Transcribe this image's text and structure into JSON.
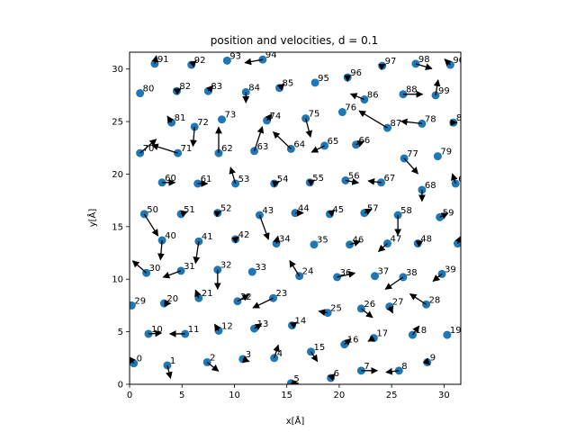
{
  "chart_data": {
    "type": "scatter",
    "title": "position and velocities, d = 0.1",
    "xlabel": "x[Å]",
    "ylabel": "y[Å]",
    "xlim": [
      0,
      31.6
    ],
    "ylim": [
      0,
      31.6
    ],
    "xticks": [
      0,
      5,
      10,
      15,
      20,
      25,
      30
    ],
    "yticks": [
      0,
      5,
      10,
      15,
      20,
      25,
      30
    ],
    "marker_color": "#1f77b4",
    "arrow_color": "#000000",
    "particles": [
      {
        "id": 0,
        "x": 0.4,
        "y": 2.0,
        "vx": -0.6,
        "vy": 0.8
      },
      {
        "id": 1,
        "x": 3.6,
        "y": 1.8,
        "vx": 0.4,
        "vy": -1.6
      },
      {
        "id": 2,
        "x": 7.4,
        "y": 2.1,
        "vx": 1.4,
        "vy": -1.1
      },
      {
        "id": 3,
        "x": 10.8,
        "y": 2.4,
        "vx": 0.8,
        "vy": -0.3
      },
      {
        "id": 4,
        "x": 13.8,
        "y": 2.5,
        "vx": 0.5,
        "vy": 1.6
      },
      {
        "id": 5,
        "x": 15.4,
        "y": 0.1,
        "vx": 0.9,
        "vy": 0.0
      },
      {
        "id": 6,
        "x": 19.2,
        "y": 0.6,
        "vx": 0.5,
        "vy": 0.5
      },
      {
        "id": 7,
        "x": 22.1,
        "y": 1.3,
        "vx": 2.0,
        "vy": 0.0
      },
      {
        "id": 8,
        "x": 25.7,
        "y": 1.3,
        "vx": -1.6,
        "vy": -0.2
      },
      {
        "id": 9,
        "x": 28.4,
        "y": 2.1,
        "vx": 0.3,
        "vy": -0.3
      },
      {
        "id": 10,
        "x": 1.8,
        "y": 4.8,
        "vx": 1.6,
        "vy": 0.1
      },
      {
        "id": 11,
        "x": 5.3,
        "y": 4.8,
        "vx": -1.9,
        "vy": 0.0
      },
      {
        "id": 12,
        "x": 8.5,
        "y": 5.1,
        "vx": -0.5,
        "vy": 0.8
      },
      {
        "id": 13,
        "x": 11.9,
        "y": 5.3,
        "vx": 0.9,
        "vy": 0.6
      },
      {
        "id": 14,
        "x": 15.5,
        "y": 5.6,
        "vx": 0.6,
        "vy": 0.4
      },
      {
        "id": 15,
        "x": 17.3,
        "y": 3.1,
        "vx": 0.8,
        "vy": -1.2
      },
      {
        "id": 16,
        "x": 20.5,
        "y": 3.8,
        "vx": 0.8,
        "vy": 0.7
      },
      {
        "id": 17,
        "x": 23.3,
        "y": 4.4,
        "vx": -0.7,
        "vy": -0.4
      },
      {
        "id": 18,
        "x": 27.0,
        "y": 4.7,
        "vx": 0.8,
        "vy": 1.1
      },
      {
        "id": 19,
        "x": 30.3,
        "y": 4.7,
        "vx": 0.0,
        "vy": 0.0
      },
      {
        "id": 20,
        "x": 3.3,
        "y": 7.7,
        "vx": 0.8,
        "vy": 0.0
      },
      {
        "id": 21,
        "x": 6.6,
        "y": 8.2,
        "vx": -0.4,
        "vy": 1.0
      },
      {
        "id": 22,
        "x": 10.3,
        "y": 7.9,
        "vx": 1.4,
        "vy": 0.8
      },
      {
        "id": 23,
        "x": 13.7,
        "y": 8.2,
        "vx": -2.5,
        "vy": -1.2
      },
      {
        "id": 24,
        "x": 16.2,
        "y": 10.3,
        "vx": -1.2,
        "vy": 1.9
      },
      {
        "id": 25,
        "x": 18.9,
        "y": 6.8,
        "vx": -1.1,
        "vy": 0.2
      },
      {
        "id": 26,
        "x": 22.1,
        "y": 7.2,
        "vx": 1.4,
        "vy": -1.1
      },
      {
        "id": 27,
        "x": 24.8,
        "y": 7.4,
        "vx": 0.4,
        "vy": -0.8
      },
      {
        "id": 28,
        "x": 28.3,
        "y": 7.6,
        "vx": -2.0,
        "vy": 1.3
      },
      {
        "id": 29,
        "x": 0.2,
        "y": 7.5,
        "vx": 0.0,
        "vy": 0.0
      },
      {
        "id": 30,
        "x": 1.6,
        "y": 10.6,
        "vx": -1.7,
        "vy": 1.5
      },
      {
        "id": 31,
        "x": 4.9,
        "y": 10.8,
        "vx": -2.2,
        "vy": -0.8
      },
      {
        "id": 32,
        "x": 8.4,
        "y": 10.9,
        "vx": 0.0,
        "vy": -2.4
      },
      {
        "id": 33,
        "x": 11.7,
        "y": 10.7,
        "vx": 0.0,
        "vy": 0.0
      },
      {
        "id": 34,
        "x": 14.0,
        "y": 13.4,
        "vx": 0.2,
        "vy": 0.9
      },
      {
        "id": 35,
        "x": 17.6,
        "y": 13.3,
        "vx": 0.0,
        "vy": 0.0
      },
      {
        "id": 36,
        "x": 19.8,
        "y": 10.2,
        "vx": 2.2,
        "vy": 0.5
      },
      {
        "id": 37,
        "x": 23.4,
        "y": 10.3,
        "vx": 0.0,
        "vy": 0.0
      },
      {
        "id": 38,
        "x": 26.1,
        "y": 10.2,
        "vx": -2.2,
        "vy": -1.5
      },
      {
        "id": 39,
        "x": 29.8,
        "y": 10.5,
        "vx": -1.1,
        "vy": -0.9
      },
      {
        "id": 40,
        "x": 3.1,
        "y": 13.7,
        "vx": -0.2,
        "vy": -2.4
      },
      {
        "id": 41,
        "x": 6.6,
        "y": 13.6,
        "vx": -0.4,
        "vy": -2.7
      },
      {
        "id": 42,
        "x": 10.1,
        "y": 13.8,
        "vx": 0.4,
        "vy": 0.3
      },
      {
        "id": 43,
        "x": 12.4,
        "y": 16.1,
        "vx": 1.1,
        "vy": -3.0
      },
      {
        "id": 44,
        "x": 15.8,
        "y": 16.3,
        "vx": 1.0,
        "vy": 0.0
      },
      {
        "id": 45,
        "x": 19.1,
        "y": 16.2,
        "vx": 0.6,
        "vy": 0.5
      },
      {
        "id": 46,
        "x": 21.0,
        "y": 13.3,
        "vx": 1.3,
        "vy": 0.4
      },
      {
        "id": 47,
        "x": 24.6,
        "y": 13.4,
        "vx": -1.1,
        "vy": -1.0
      },
      {
        "id": 48,
        "x": 27.5,
        "y": 13.4,
        "vx": 0.6,
        "vy": 0.3
      },
      {
        "id": 49,
        "x": 31.3,
        "y": 13.4,
        "vx": 0.4,
        "vy": 0.9
      },
      {
        "id": 50,
        "x": 1.4,
        "y": 16.2,
        "vx": 1.7,
        "vy": -2.7
      },
      {
        "id": 51,
        "x": 4.9,
        "y": 16.2,
        "vx": 0.8,
        "vy": 0.3
      },
      {
        "id": 52,
        "x": 8.4,
        "y": 16.3,
        "vx": 0.4,
        "vy": 0.2
      },
      {
        "id": 53,
        "x": 10.1,
        "y": 19.1,
        "vx": -0.6,
        "vy": 2.0
      },
      {
        "id": 54,
        "x": 13.8,
        "y": 19.1,
        "vx": 0.6,
        "vy": 0.2
      },
      {
        "id": 55,
        "x": 17.2,
        "y": 19.2,
        "vx": 0.6,
        "vy": 0.3
      },
      {
        "id": 56,
        "x": 20.6,
        "y": 19.4,
        "vx": 1.6,
        "vy": -0.3
      },
      {
        "id": 57,
        "x": 22.4,
        "y": 16.3,
        "vx": 0.9,
        "vy": 0.5
      },
      {
        "id": 58,
        "x": 25.6,
        "y": 16.1,
        "vx": 0.0,
        "vy": -2.5
      },
      {
        "id": 59,
        "x": 29.6,
        "y": 15.9,
        "vx": 1.0,
        "vy": 0.5
      },
      {
        "id": 60,
        "x": 3.1,
        "y": 19.2,
        "vx": 1.6,
        "vy": 0.0
      },
      {
        "id": 61,
        "x": 6.5,
        "y": 19.1,
        "vx": 1.2,
        "vy": 0.0
      },
      {
        "id": 62,
        "x": 8.5,
        "y": 22.0,
        "vx": 0.0,
        "vy": 3.2
      },
      {
        "id": 63,
        "x": 11.9,
        "y": 22.2,
        "vx": 1.0,
        "vy": 3.0
      },
      {
        "id": 64,
        "x": 15.4,
        "y": 22.4,
        "vx": -2.2,
        "vy": 2.1
      },
      {
        "id": 65,
        "x": 18.6,
        "y": 22.7,
        "vx": -1.6,
        "vy": -0.8
      },
      {
        "id": 66,
        "x": 21.6,
        "y": 22.8,
        "vx": 1.0,
        "vy": 0.4
      },
      {
        "id": 67,
        "x": 24.0,
        "y": 19.2,
        "vx": -1.6,
        "vy": 0.2
      },
      {
        "id": 68,
        "x": 27.9,
        "y": 18.5,
        "vx": 0.0,
        "vy": -1.4
      },
      {
        "id": 69,
        "x": 31.1,
        "y": 19.1,
        "vx": -0.4,
        "vy": 1.2
      },
      {
        "id": 70,
        "x": 1.0,
        "y": 22.0,
        "vx": 2.0,
        "vy": 1.7
      },
      {
        "id": 71,
        "x": 4.6,
        "y": 22.0,
        "vx": -3.2,
        "vy": 1.0
      },
      {
        "id": 72,
        "x": 6.2,
        "y": 24.5,
        "vx": -0.2,
        "vy": -2.4
      },
      {
        "id": 73,
        "x": 8.8,
        "y": 25.2,
        "vx": 0.0,
        "vy": 0.0
      },
      {
        "id": 74,
        "x": 13.1,
        "y": 25.1,
        "vx": 0.6,
        "vy": 0.8
      },
      {
        "id": 75,
        "x": 16.8,
        "y": 25.3,
        "vx": 0.6,
        "vy": -2.3
      },
      {
        "id": 76,
        "x": 20.3,
        "y": 25.9,
        "vx": 0.0,
        "vy": 0.0
      },
      {
        "id": 77,
        "x": 26.2,
        "y": 21.5,
        "vx": 1.7,
        "vy": -1.9
      },
      {
        "id": 78,
        "x": 27.9,
        "y": 24.8,
        "vx": -2.6,
        "vy": 0.3
      },
      {
        "id": 79,
        "x": 29.4,
        "y": 21.7,
        "vx": 0.0,
        "vy": 0.0
      },
      {
        "id": 80,
        "x": 1.0,
        "y": 27.7,
        "vx": 0.0,
        "vy": 0.0
      },
      {
        "id": 81,
        "x": 4.0,
        "y": 24.9,
        "vx": -0.5,
        "vy": 0.8
      },
      {
        "id": 82,
        "x": 4.5,
        "y": 27.9,
        "vx": 0.5,
        "vy": 0.3
      },
      {
        "id": 83,
        "x": 7.5,
        "y": 27.9,
        "vx": 0.6,
        "vy": 0.7
      },
      {
        "id": 84,
        "x": 11.1,
        "y": 27.8,
        "vx": 0.0,
        "vy": -1.3
      },
      {
        "id": 85,
        "x": 14.3,
        "y": 28.2,
        "vx": 0.6,
        "vy": 0.5
      },
      {
        "id": 86,
        "x": 22.4,
        "y": 27.1,
        "vx": -1.7,
        "vy": 0.7
      },
      {
        "id": 87,
        "x": 24.6,
        "y": 24.4,
        "vx": -3.5,
        "vy": 2.1
      },
      {
        "id": 88,
        "x": 26.1,
        "y": 27.6,
        "vx": 2.4,
        "vy": 0.0
      },
      {
        "id": 89,
        "x": 30.9,
        "y": 24.9,
        "vx": 0.4,
        "vy": 0.0
      },
      {
        "id": 90,
        "x": 30.6,
        "y": 30.4,
        "vx": -0.7,
        "vy": 0.7
      },
      {
        "id": 91,
        "x": 2.4,
        "y": 30.5,
        "vx": 0.2,
        "vy": 1.0
      },
      {
        "id": 92,
        "x": 5.9,
        "y": 30.4,
        "vx": 0.6,
        "vy": 0.5
      },
      {
        "id": 93,
        "x": 9.3,
        "y": 30.8,
        "vx": 0.0,
        "vy": 0.0
      },
      {
        "id": 94,
        "x": 12.7,
        "y": 30.9,
        "vx": -2.2,
        "vy": -0.4
      },
      {
        "id": 95,
        "x": 17.7,
        "y": 28.7,
        "vx": 0.0,
        "vy": 0.0
      },
      {
        "id": 96,
        "x": 20.8,
        "y": 29.2,
        "vx": 0.0,
        "vy": -0.5
      },
      {
        "id": 97,
        "x": 24.1,
        "y": 30.3,
        "vx": 0.4,
        "vy": 0.2
      },
      {
        "id": 98,
        "x": 27.3,
        "y": 30.5,
        "vx": 2.0,
        "vy": -0.6
      },
      {
        "id": 99,
        "x": 29.2,
        "y": 27.5,
        "vx": 0.3,
        "vy": 1.9
      }
    ]
  }
}
